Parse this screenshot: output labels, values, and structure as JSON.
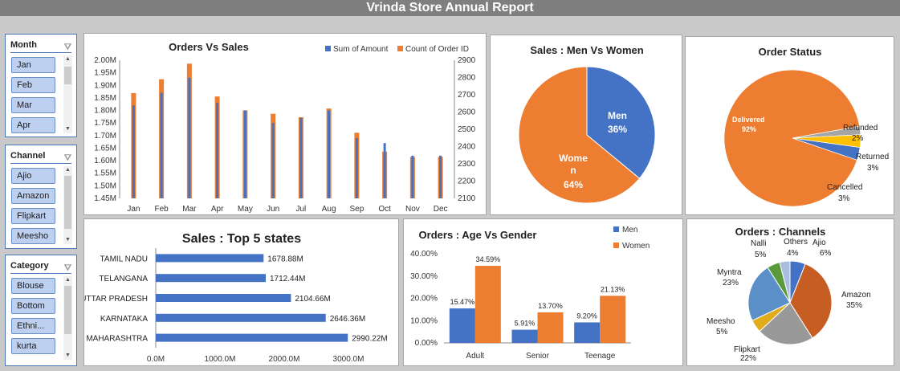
{
  "report_title": "Vrinda Store Annual Report",
  "slicers": [
    {
      "title": "Month",
      "items": [
        "Jan",
        "Feb",
        "Mar",
        "Apr"
      ]
    },
    {
      "title": "Channel",
      "items": [
        "Ajio",
        "Amazon",
        "Flipkart",
        "Meesho"
      ]
    },
    {
      "title": "Category",
      "items": [
        "Blouse",
        "Bottom",
        "Ethni...",
        "kurta"
      ]
    }
  ],
  "chart_data": [
    {
      "type": "bar",
      "title": "Orders Vs Sales",
      "categories": [
        "Jan",
        "Feb",
        "Mar",
        "Apr",
        "May",
        "Jun",
        "Jul",
        "Aug",
        "Sep",
        "Oct",
        "Nov",
        "Dec"
      ],
      "series": [
        {
          "name": "Sum of Amount",
          "axis": "left",
          "color": "#4472c4",
          "values": [
            1.82,
            1.87,
            1.93,
            1.83,
            1.8,
            1.75,
            1.77,
            1.8,
            1.69,
            1.67,
            1.62,
            1.62
          ]
        },
        {
          "name": "Count of Order ID",
          "axis": "right",
          "color": "#ed7d31",
          "values": [
            2710,
            2790,
            2880,
            2690,
            2610,
            2590,
            2570,
            2620,
            2480,
            2370,
            2340,
            2340
          ]
        }
      ],
      "left_ticks": [
        "2.00M",
        "1.95M",
        "1.90M",
        "1.85M",
        "1.80M",
        "1.75M",
        "1.70M",
        "1.65M",
        "1.60M",
        "1.55M",
        "1.50M",
        "1.45M"
      ],
      "right_ticks": [
        "2900",
        "2800",
        "2700",
        "2600",
        "2500",
        "2400",
        "2300",
        "2200",
        "2100"
      ],
      "ylim_left": [
        1.45,
        2.0
      ],
      "ylim_right": [
        2100,
        2900
      ],
      "legend": "top-right"
    },
    {
      "type": "pie",
      "title": "Sales : Men Vs Women",
      "slices": [
        {
          "label": "Men",
          "value": 36,
          "text": "36%",
          "color": "#4472c4"
        },
        {
          "label": "Wome\nn",
          "value": 64,
          "text": "64%",
          "color": "#ed7d31"
        }
      ]
    },
    {
      "type": "pie",
      "title": "Order Status",
      "slices": [
        {
          "label": "Delivered",
          "value": 92,
          "text": "92%",
          "color": "#ed7d31"
        },
        {
          "label": "Refunded",
          "value": 2,
          "text": "2%",
          "color": "#a5a5a5"
        },
        {
          "label": "Returned",
          "value": 3,
          "text": "3%",
          "color": "#ffc000"
        },
        {
          "label": "Cancelled",
          "value": 3,
          "text": "3%",
          "color": "#4472c4"
        }
      ]
    },
    {
      "type": "bar",
      "orientation": "horizontal",
      "title": "Sales : Top 5 states",
      "categories": [
        "TAMIL NADU",
        "TELANGANA",
        "UTTAR PRADESH",
        "KARNATAKA",
        "MAHARASHTRA"
      ],
      "values": [
        1678.88,
        1712.44,
        2104.66,
        2646.36,
        2990.22
      ],
      "labels": [
        "1678.88M",
        "1712.44M",
        "2104.66M",
        "2646.36M",
        "2990.22M"
      ],
      "x_ticks": [
        "0.0M",
        "1000.0M",
        "2000.0M",
        "3000.0M"
      ],
      "xlim": [
        0,
        3000
      ],
      "color": "#4472c4"
    },
    {
      "type": "bar",
      "title": "Orders : Age Vs Gender",
      "categories": [
        "Adult",
        "Senior",
        "Teenage"
      ],
      "series": [
        {
          "name": "Men",
          "color": "#4472c4",
          "values": [
            15.47,
            5.91,
            9.2
          ],
          "labels": [
            "15.47%",
            "5.91%",
            "9.20%"
          ]
        },
        {
          "name": "Women",
          "color": "#ed7d31",
          "values": [
            34.59,
            13.7,
            21.13
          ],
          "labels": [
            "34.59%",
            "13.70%",
            "21.13%"
          ]
        }
      ],
      "y_ticks": [
        "40.00%",
        "30.00%",
        "20.00%",
        "10.00%",
        "0.00%"
      ],
      "ylim": [
        0,
        40
      ],
      "legend": "top-right"
    },
    {
      "type": "pie",
      "title": "Orders : Channels",
      "slices": [
        {
          "label": "Ajio",
          "value": 6,
          "text": "6%",
          "color": "#4472c4"
        },
        {
          "label": "Amazon",
          "value": 35,
          "text": "35%",
          "color": "#c65e24"
        },
        {
          "label": "Flipkart",
          "value": 22,
          "text": "22%",
          "color": "#999999"
        },
        {
          "label": "Meesho",
          "value": 5,
          "text": "5%",
          "color": "#e0ac1a"
        },
        {
          "label": "Myntra",
          "value": 23,
          "text": "23%",
          "color": "#5b8fc8"
        },
        {
          "label": "Nalli",
          "value": 5,
          "text": "5%",
          "color": "#5a9a3c"
        },
        {
          "label": "Others",
          "value": 4,
          "text": "4%",
          "color": "#a9bde0"
        }
      ]
    }
  ]
}
